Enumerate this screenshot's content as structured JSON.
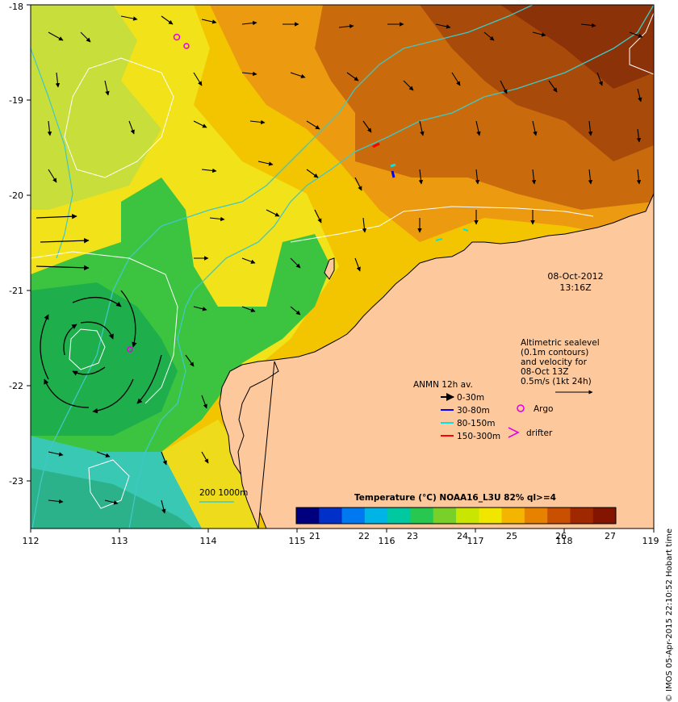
{
  "map": {
    "title": "Temperature (°C) NOAA16_L3U 82% ql>=4",
    "date": "08-Oct-2012",
    "time": "13:16Z",
    "credit": "© IMOS 05-Apr-2015 22:10:52 Hobart time",
    "x_ticks": [
      "112",
      "113",
      "114",
      "115",
      "116",
      "117",
      "118",
      "119"
    ],
    "y_ticks": [
      "-18",
      "-19",
      "-20",
      "-21",
      "-22",
      "-23"
    ],
    "colorbar_ticks": [
      "21",
      "22",
      "23",
      "24",
      "25",
      "26",
      "27"
    ],
    "colorbar_colors": [
      "#00007f",
      "#0030c8",
      "#0078f0",
      "#00b4e6",
      "#00c8a0",
      "#28c850",
      "#78d028",
      "#c8e600",
      "#f0e600",
      "#f5b400",
      "#e68200",
      "#c85000",
      "#a02800",
      "#821400"
    ],
    "isobath_label": "200  1000m",
    "altimetry_note": [
      "Altimetric sealevel",
      "(0.1m contours)",
      "and velocity for",
      "08-Oct 13Z",
      "0.5m/s (1kt 24h)"
    ],
    "legend": {
      "title": "ANMN 12h av.",
      "items": [
        {
          "label": "0-30m",
          "color": "#000000"
        },
        {
          "label": "30-80m",
          "color": "#0000ff"
        },
        {
          "label": "80-150m",
          "color": "#00e5e5"
        },
        {
          "label": "150-300m",
          "color": "#ff0000"
        }
      ],
      "argo_label": "Argo",
      "drifter_label": "drifter",
      "argo_color": "#e600e6"
    },
    "land_color": "#fdc89c",
    "isobath_color": "#40c8c8"
  }
}
